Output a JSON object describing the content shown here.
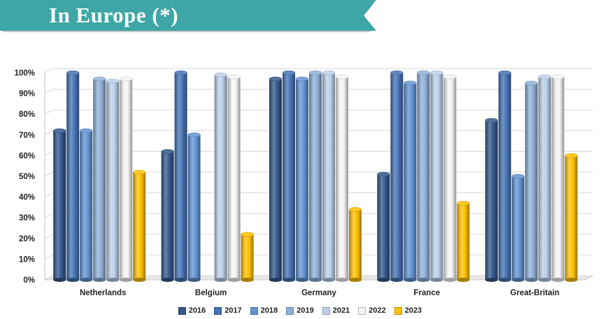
{
  "header": {
    "title": "In Europe (*)",
    "colors": {
      "banner": "#3ea6a6",
      "banner_shadow": "#7a7a7a",
      "title_text": "#ffffff"
    }
  },
  "chart_data": {
    "type": "bar",
    "title": "In Europe (*)",
    "xlabel": "",
    "ylabel": "",
    "ylim": [
      0,
      100
    ],
    "y_ticks": [
      "0%",
      "10%",
      "20%",
      "30%",
      "40%",
      "50%",
      "60%",
      "70%",
      "80%",
      "90%",
      "100%"
    ],
    "grid": true,
    "legend_position": "bottom",
    "categories": [
      "Netherlands",
      "Belgium",
      "Germany",
      "France",
      "Great-Britain"
    ],
    "series": [
      {
        "name": "2016",
        "color": "#34588c",
        "values": [
          72,
          62,
          97,
          51,
          77
        ]
      },
      {
        "name": "2017",
        "color": "#4673b5",
        "values": [
          100,
          100,
          100,
          100,
          100
        ]
      },
      {
        "name": "2018",
        "color": "#6394d4",
        "values": [
          72,
          70,
          97,
          95,
          50
        ]
      },
      {
        "name": "2019",
        "color": "#8fb0d8",
        "values": [
          97,
          null,
          100,
          100,
          95
        ]
      },
      {
        "name": "2021",
        "color": "#bcd0ea",
        "values": [
          96,
          99,
          100,
          100,
          98
        ]
      },
      {
        "name": "2022",
        "color": "#f4f4f4",
        "values": [
          97,
          98,
          98,
          98,
          98
        ]
      },
      {
        "name": "2023",
        "color": "#ffc000",
        "values": [
          52,
          22,
          34,
          37,
          60
        ]
      }
    ]
  }
}
